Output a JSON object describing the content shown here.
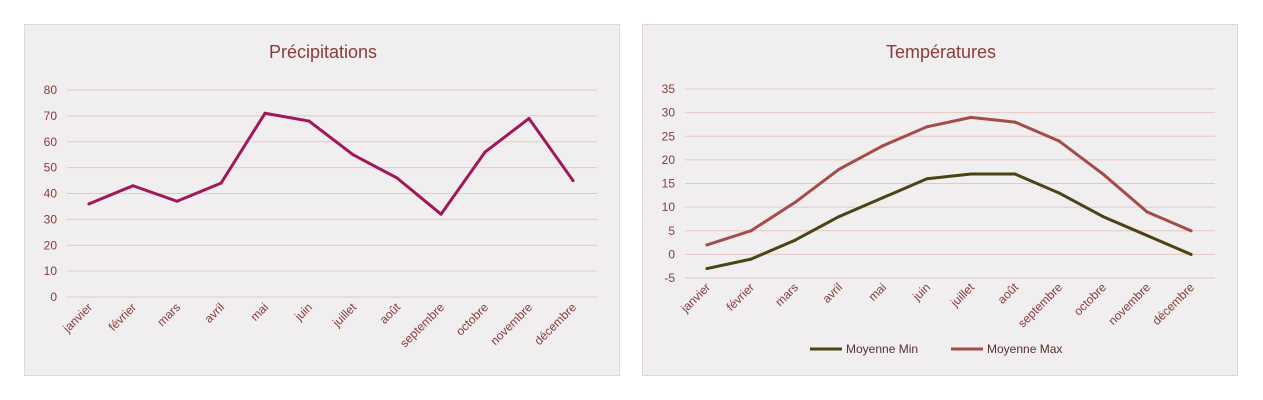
{
  "chart_data": [
    {
      "type": "line",
      "title": "Précipitations",
      "categories": [
        "janvier",
        "février",
        "mars",
        "avril",
        "mai",
        "juin",
        "juillet",
        "août",
        "septembre",
        "octobre",
        "novembre",
        "décembre"
      ],
      "series": [
        {
          "values": [
            36,
            43,
            37,
            44,
            71,
            68,
            55,
            46,
            32,
            56,
            69,
            45
          ],
          "color": "#a0185a"
        }
      ],
      "ylim": [
        0,
        80
      ],
      "yticks": [
        "0",
        "10",
        "20",
        "30",
        "40",
        "50",
        "60",
        "70",
        "80"
      ],
      "grid": true,
      "gridline_color": "#e6c7c7",
      "text_color": "#8a3b3b"
    },
    {
      "type": "line",
      "title": "Températures",
      "categories": [
        "janvier",
        "février",
        "mars",
        "avril",
        "mai",
        "juin",
        "juillet",
        "août",
        "septembre",
        "octobre",
        "novembre",
        "décembre"
      ],
      "series": [
        {
          "name": "Moyenne Min",
          "values": [
            -3,
            -1,
            3,
            8,
            12,
            16,
            17,
            17,
            13,
            8,
            4,
            0
          ],
          "color": "#4a4313"
        },
        {
          "name": "Moyenne Max",
          "values": [
            2,
            5,
            11,
            18,
            23,
            27,
            29,
            28,
            24,
            17,
            9,
            5
          ],
          "color": "#a24c4c"
        }
      ],
      "ylim": [
        -5,
        35
      ],
      "yticks": [
        "-5",
        "0",
        "5",
        "10",
        "15",
        "20",
        "25",
        "30",
        "35"
      ],
      "grid": true,
      "legend": "bottom",
      "gridline_color": "#e6c7c7",
      "text_color": "#8a3b3b"
    }
  ]
}
